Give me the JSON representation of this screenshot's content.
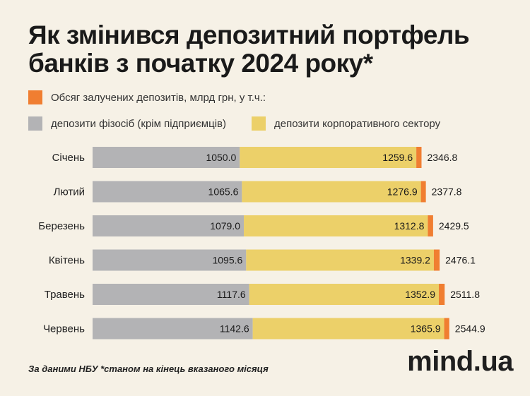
{
  "title": "Як змінився депозитний портфель банків з початку 2024 року*",
  "legend": {
    "total": "Обсяг залучених депозитів, млрд грн, у т.ч.:",
    "households": "депозити фізосіб (крім підприємців)",
    "corporate": "депозити корпоративного сектору"
  },
  "colors": {
    "households": "#b3b3b5",
    "corporate": "#ecd069",
    "total": "#f07e31"
  },
  "chart_data": {
    "type": "bar",
    "orientation": "horizontal",
    "stacked": true,
    "categories": [
      "Січень",
      "Лютий",
      "Березень",
      "Квітень",
      "Травень",
      "Червень"
    ],
    "series": [
      {
        "name": "депозити фізосіб (крім підприємців)",
        "values": [
          1050.0,
          1065.6,
          1079.0,
          1095.6,
          1117.6,
          1142.6
        ],
        "labels": [
          "1050.0",
          "1065.6",
          "1079.0",
          "1095.6",
          "1117.6",
          "1142.6"
        ]
      },
      {
        "name": "депозити корпоративного сектору",
        "values": [
          1259.6,
          1276.9,
          1312.8,
          1339.2,
          1352.9,
          1365.9
        ],
        "labels": [
          "1259.6",
          "1276.9",
          "1312.8",
          "1339.2",
          "1352.9",
          "1365.9"
        ]
      }
    ],
    "totals": {
      "name": "Обсяг залучених депозитів, млрд грн, у т.ч.:",
      "values": [
        2346.8,
        2377.8,
        2429.5,
        2476.1,
        2511.8,
        2544.9
      ],
      "labels": [
        "2346.8",
        "2377.8",
        "2429.5",
        "2476.1",
        "2511.8",
        "2544.9"
      ]
    },
    "xlim": [
      0,
      2546
    ],
    "grid": false,
    "legend_position": "top-left"
  },
  "footnote": "За даними НБУ *станом на кінець вказаного місяця",
  "logo": "mind.ua"
}
